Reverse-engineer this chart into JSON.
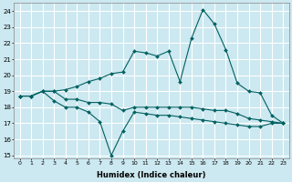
{
  "xlabel": "Humidex (Indice chaleur)",
  "xlim": [
    -0.5,
    23.5
  ],
  "ylim": [
    14.8,
    24.5
  ],
  "yticks": [
    15,
    16,
    17,
    18,
    19,
    20,
    21,
    22,
    23,
    24
  ],
  "xticks": [
    0,
    1,
    2,
    3,
    4,
    5,
    6,
    7,
    8,
    9,
    10,
    11,
    12,
    13,
    14,
    15,
    16,
    17,
    18,
    19,
    20,
    21,
    22,
    23
  ],
  "bg_color": "#cce8f0",
  "line_color": "#006060",
  "grid_color": "#ffffff",
  "line1_y": [
    18.7,
    18.7,
    19.0,
    18.4,
    18.0,
    18.0,
    17.7,
    17.1,
    15.0,
    16.5,
    17.7,
    17.6,
    17.5,
    17.5,
    17.4,
    17.3,
    17.2,
    17.1,
    17.0,
    16.9,
    16.8,
    16.8,
    17.0,
    17.0
  ],
  "line2_y": [
    18.7,
    18.7,
    19.0,
    19.0,
    18.5,
    18.5,
    18.3,
    18.3,
    18.2,
    17.8,
    18.0,
    18.0,
    18.0,
    18.0,
    18.0,
    18.0,
    17.9,
    17.8,
    17.8,
    17.6,
    17.3,
    17.2,
    17.1,
    17.0
  ],
  "line3_y": [
    18.7,
    18.7,
    19.0,
    19.0,
    19.1,
    19.3,
    19.6,
    19.8,
    20.1,
    20.2,
    21.5,
    21.4,
    21.2,
    21.5,
    19.6,
    22.3,
    24.1,
    23.2,
    21.6,
    19.5,
    19.0,
    18.9,
    17.5,
    17.0
  ]
}
